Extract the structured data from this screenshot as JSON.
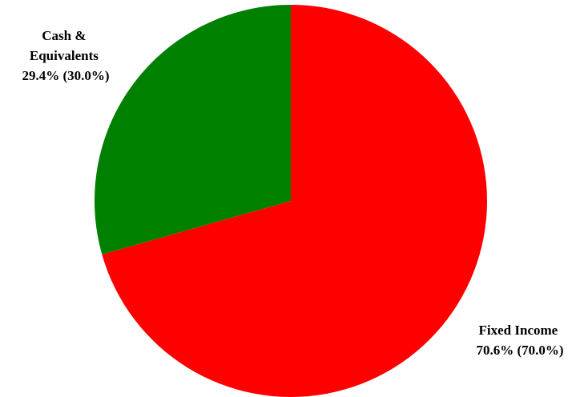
{
  "chart_data": {
    "type": "pie",
    "slices": [
      {
        "label_lines": [
          "Fixed Income",
          "70.6% (70.0%)"
        ],
        "value": 70.6,
        "target": 70.0,
        "color": "#ff0000"
      },
      {
        "label_lines": [
          "Cash &",
          "Equivalents",
          "29.4% (30.0%)"
        ],
        "value": 29.4,
        "target": 30.0,
        "color": "#008000"
      }
    ],
    "start_angle": "12 o'clock",
    "direction": "clockwise"
  }
}
